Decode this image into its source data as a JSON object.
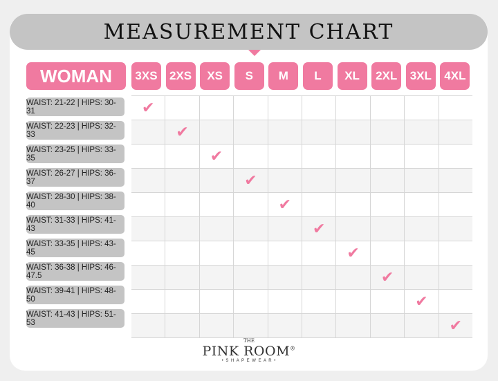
{
  "title": "MEASUREMENT CHART",
  "category": "WOMAN",
  "sizes": [
    "3XS",
    "2XS",
    "XS",
    "S",
    "M",
    "L",
    "XL",
    "2XL",
    "3XL",
    "4XL"
  ],
  "rows": [
    {
      "label": "WAIST: 21-22 | HIPS: 30-31",
      "size": "3XS"
    },
    {
      "label": "WAIST: 22-23 | HIPS: 32-33",
      "size": "2XS"
    },
    {
      "label": "WAIST: 23-25 | HIPS: 33-35",
      "size": "XS"
    },
    {
      "label": "WAIST: 26-27 | HIPS: 36-37",
      "size": "S"
    },
    {
      "label": "WAIST: 28-30 | HIPS: 38-40",
      "size": "M"
    },
    {
      "label": "WAIST: 31-33 | HIPS: 41-43",
      "size": "L"
    },
    {
      "label": "WAIST: 33-35 | HIPS: 43-45",
      "size": "XL"
    },
    {
      "label": "WAIST: 36-38 | HIPS: 46-47.5",
      "size": "2XL"
    },
    {
      "label": "WAIST: 39-41 | HIPS: 48-50",
      "size": "3XL"
    },
    {
      "label": "WAIST: 41-43 | HIPS: 51-53",
      "size": "4XL"
    }
  ],
  "check_icon": "checkmark-icon",
  "colors": {
    "accent": "#f07aa0",
    "label_bg": "#c4c4c4"
  },
  "logo": {
    "the": "THE",
    "name": "PINK ROOM",
    "reg": "®",
    "sub": "• S H A P E W E A R •"
  }
}
